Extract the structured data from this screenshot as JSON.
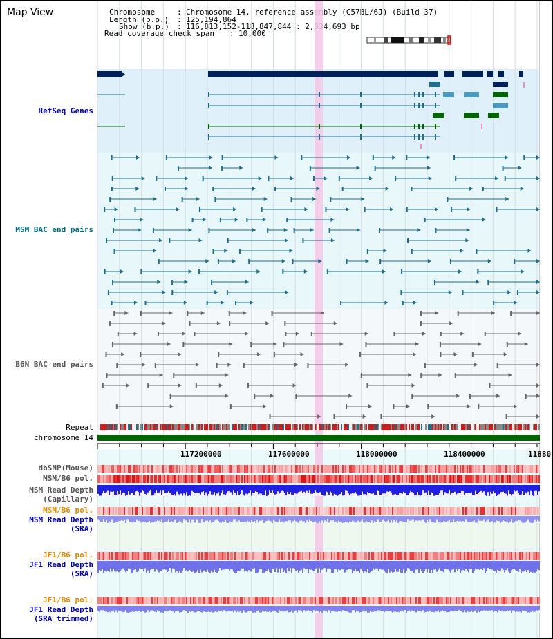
{
  "page": {
    "title": "Map View"
  },
  "info": {
    "chromosome_key": "Chromosome",
    "chromosome_val": "Chromosome 14, reference assembly (C57BL/6J) (Build 37)",
    "length_key": "Length (b.p.)",
    "length_val": "125,194,864",
    "show_key": "Show (b.p.)",
    "show_val": "116,813,152-118,847,844 : 2,034,693 bp",
    "span_key": "Read coverage check span",
    "span_val": "10,000"
  },
  "tracks": {
    "refseq": "RefSeq Genes",
    "msm_bac": "MSM BAC end pairs",
    "b6n_bac": "B6N BAC end pairs",
    "repeat": "Repeat",
    "chromosome": "chromosome 14",
    "dbsnp": "dbSNP(Mouse)",
    "msm_b6_pol_1": "MSM/B6 pol.",
    "msm_read_depth_cap_1": "MSM Read Depth",
    "msm_read_depth_cap_2": "(Capillary)",
    "msm_b6_pol_2": "MSM/B6 pol.",
    "msm_read_depth_sra_1": "MSM Read Depth",
    "msm_read_depth_sra_2": "(SRA)",
    "jf1_b6_pol_1": "JF1/B6 pol.",
    "jf1_read_depth_sra_1": "JF1 Read Depth",
    "jf1_read_depth_sra_2": "(SRA)",
    "jf1_b6_pol_2": "JF1/B6 pol.",
    "jf1_read_depth_trim_1": "JF1 Read Depth",
    "jf1_read_depth_trim_2": "(SRA trimmed)"
  },
  "axis": {
    "ticks": [
      "117200000",
      "117600000",
      "118000000",
      "118400000",
      "11880"
    ]
  },
  "colors": {
    "refseq_bg": "#dff0fa",
    "bac_bg": "#e8f8fa",
    "msm_label": "#006e82",
    "b6n_label": "#555555",
    "blue_label": "#0000aa",
    "orange_label": "#e08c00",
    "highlight": "#f5c8e6",
    "chromosome_bar": "#006400"
  }
}
